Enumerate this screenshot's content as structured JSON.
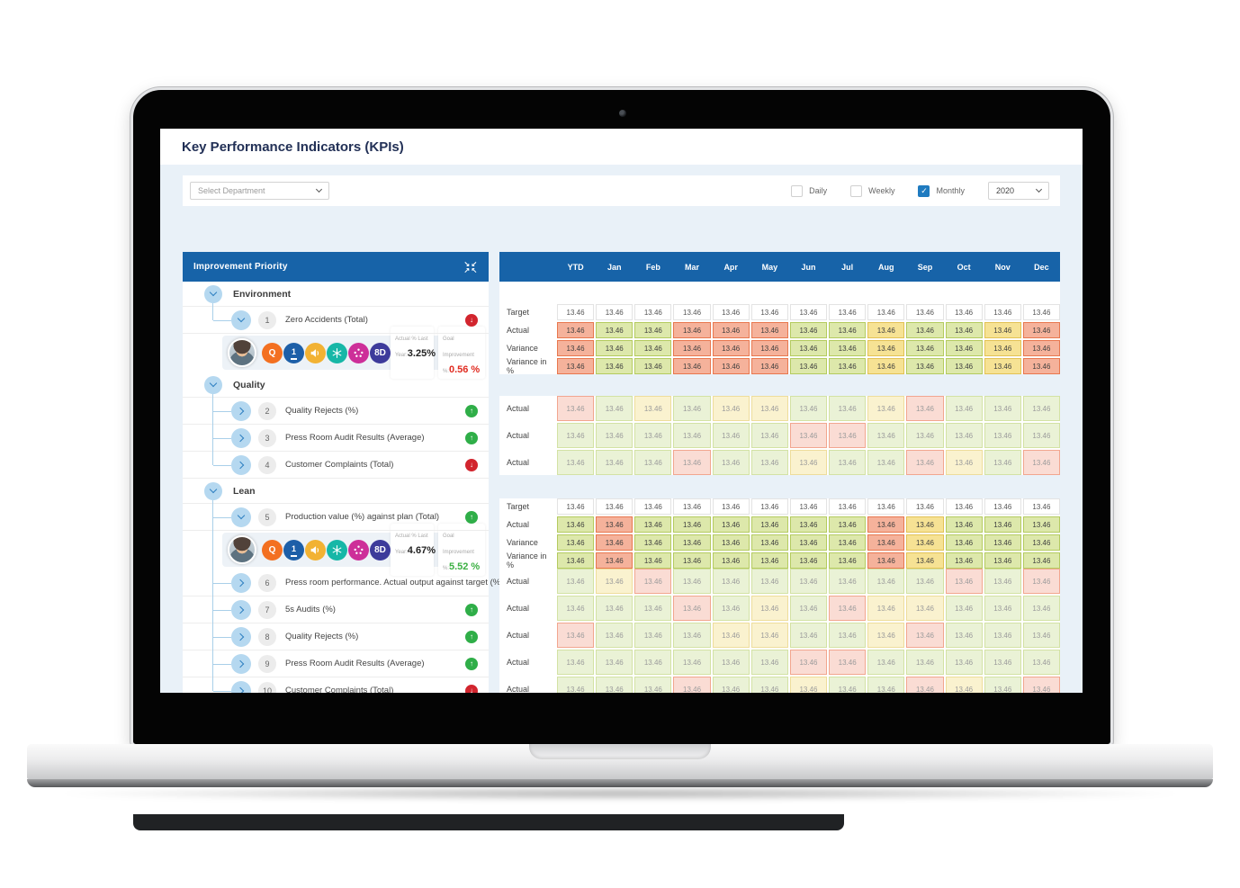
{
  "page": {
    "title": "Key Performance Indicators (KPIs)"
  },
  "colors": {
    "header_blue": "#1763a8",
    "accent_blue": "#1f7bc0",
    "body_background": "#e9f1f8",
    "cell_red": "#f5b29b",
    "cell_green": "#dde8ab",
    "cell_yellow": "#f6e294",
    "cell_pale_pink": "#fadcd4",
    "cell_pale_green": "#eaf2d6",
    "cell_pale_yellow": "#faf2cf",
    "trend_up_green": "#2fae48",
    "trend_down_red": "#d2252e",
    "negative_value_red": "#e02b20",
    "positive_value_green": "#3cb043"
  },
  "filters": {
    "department_placeholder": "Select Department",
    "options": [
      {
        "label": "Daily",
        "checked": false
      },
      {
        "label": "Weekly",
        "checked": false
      },
      {
        "label": "Monthly",
        "checked": true
      }
    ],
    "year": "2020"
  },
  "improvement": {
    "header": "Improvement Priority",
    "sections": [
      {
        "label": "Environment",
        "items": [
          {
            "num": "1",
            "label": "Zero Accidents (Total)",
            "trend": "down",
            "expanded": true,
            "detail": {
              "badges": [
                {
                  "name": "quality-badge-icon",
                  "style": "text",
                  "text": "Q",
                  "bg": "#f37021"
                },
                {
                  "name": "priority-one-badge-icon",
                  "style": "text-underline",
                  "text": "1",
                  "bg": "#1d5fa8"
                },
                {
                  "name": "megaphone-badge-icon",
                  "style": "megaphone",
                  "bg": "#f2b233"
                },
                {
                  "name": "snowflake-badge-icon",
                  "style": "snowflake",
                  "bg": "#16b7a7"
                },
                {
                  "name": "scatter-badge-icon",
                  "style": "dots",
                  "bg": "#cd2f99"
                },
                {
                  "name": "eight-d-badge-icon",
                  "style": "text",
                  "text": "8D",
                  "bg": "#3d3b9b"
                }
              ],
              "actual_label": "Actual % Last Year:",
              "actual_value": "3.25%",
              "goal_label": "Goal Improvement %:",
              "goal_value": "0.56 %",
              "goal_direction": "negative"
            }
          }
        ]
      },
      {
        "label": "Quality",
        "items": [
          {
            "num": "2",
            "label": "Quality Rejects (%)",
            "trend": "up",
            "expanded": false
          },
          {
            "num": "3",
            "label": "Press Room Audit Results (Average)",
            "trend": "up",
            "expanded": false
          },
          {
            "num": "4",
            "label": "Customer Complaints (Total)",
            "trend": "down",
            "expanded": false
          }
        ]
      },
      {
        "label": "Lean",
        "items": [
          {
            "num": "5",
            "label": "Production value (%) against plan (Total)",
            "trend": "up",
            "expanded": true,
            "detail": {
              "badges": [
                {
                  "name": "quality-badge-icon",
                  "style": "text",
                  "text": "Q",
                  "bg": "#f37021"
                },
                {
                  "name": "priority-one-badge-icon",
                  "style": "text-underline",
                  "text": "1",
                  "bg": "#1d5fa8"
                },
                {
                  "name": "megaphone-badge-icon",
                  "style": "megaphone",
                  "bg": "#f2b233"
                },
                {
                  "name": "snowflake-badge-icon",
                  "style": "snowflake",
                  "bg": "#16b7a7"
                },
                {
                  "name": "scatter-badge-icon",
                  "style": "dots",
                  "bg": "#cd2f99"
                },
                {
                  "name": "eight-d-badge-icon",
                  "style": "text",
                  "text": "8D",
                  "bg": "#3d3b9b"
                }
              ],
              "actual_label": "Actual % Last Year:",
              "actual_value": "4.67%",
              "goal_label": "Goal Improvement %:",
              "goal_value": "5.52 %",
              "goal_direction": "positive"
            }
          },
          {
            "num": "6",
            "label": "Press room performance. Actual output against target (%) (%)",
            "trend": "down",
            "expanded": false
          },
          {
            "num": "7",
            "label": "5s Audits (%)",
            "trend": "up",
            "expanded": false
          },
          {
            "num": "8",
            "label": "Quality Rejects (%)",
            "trend": "up",
            "expanded": false
          },
          {
            "num": "9",
            "label": "Press Room Audit Results (Average)",
            "trend": "up",
            "expanded": false
          },
          {
            "num": "10",
            "label": "Customer Complaints (Total)",
            "trend": "down",
            "expanded": false
          }
        ]
      }
    ]
  },
  "table": {
    "columns": [
      "YTD",
      "Jan",
      "Feb",
      "Mar",
      "Apr",
      "May",
      "Jun",
      "Jul",
      "Aug",
      "Sep",
      "Oct",
      "Nov",
      "Dec"
    ],
    "blocks": [
      {
        "type": "summary",
        "rows": [
          {
            "label": "Target",
            "style": "target",
            "values": [
              "13.46",
              "13.46",
              "13.46",
              "13.46",
              "13.46",
              "13.46",
              "13.46",
              "13.46",
              "13.46",
              "13.46",
              "13.46",
              "13.46",
              "13.46"
            ],
            "colors": [
              "white",
              "white",
              "white",
              "white",
              "white",
              "white",
              "white",
              "white",
              "white",
              "white",
              "white",
              "white",
              "white"
            ]
          },
          {
            "label": "Actual",
            "style": "strong",
            "values": [
              "13.46",
              "13.46",
              "13.46",
              "13.46",
              "13.46",
              "13.46",
              "13.46",
              "13.46",
              "13.46",
              "13.46",
              "13.46",
              "13.46",
              "13.46"
            ],
            "colors": [
              "red",
              "green",
              "green",
              "red",
              "red",
              "red",
              "green",
              "green",
              "yellow",
              "green",
              "green",
              "yellow",
              "red"
            ]
          },
          {
            "label": "Variance",
            "style": "strong",
            "values": [
              "13.46",
              "13.46",
              "13.46",
              "13.46",
              "13.46",
              "13.46",
              "13.46",
              "13.46",
              "13.46",
              "13.46",
              "13.46",
              "13.46",
              "13.46"
            ],
            "colors": [
              "red",
              "green",
              "green",
              "red",
              "red",
              "red",
              "green",
              "green",
              "yellow",
              "green",
              "green",
              "yellow",
              "red"
            ]
          },
          {
            "label": "Variance in %",
            "style": "strong",
            "values": [
              "13.46",
              "13.46",
              "13.46",
              "13.46",
              "13.46",
              "13.46",
              "13.46",
              "13.46",
              "13.46",
              "13.46",
              "13.46",
              "13.46",
              "13.46"
            ],
            "colors": [
              "red",
              "green",
              "green",
              "red",
              "red",
              "red",
              "green",
              "green",
              "yellow",
              "green",
              "green",
              "yellow",
              "red"
            ]
          }
        ]
      },
      {
        "type": "collapsed",
        "rows": [
          {
            "label": "Actual",
            "style": "pastel",
            "values": [
              "13.46",
              "13.46",
              "13.46",
              "13.46",
              "13.46",
              "13.46",
              "13.46",
              "13.46",
              "13.46",
              "13.46",
              "13.46",
              "13.46",
              "13.46"
            ],
            "colors": [
              "pink",
              "pgreen",
              "pyellow",
              "pgreen",
              "pyellow",
              "pyellow",
              "pgreen",
              "pgreen",
              "pyellow",
              "pink",
              "pgreen",
              "pgreen",
              "pgreen"
            ]
          },
          {
            "label": "Actual",
            "style": "pastel",
            "values": [
              "13.46",
              "13.46",
              "13.46",
              "13.46",
              "13.46",
              "13.46",
              "13.46",
              "13.46",
              "13.46",
              "13.46",
              "13.46",
              "13.46",
              "13.46"
            ],
            "colors": [
              "pgreen",
              "pgreen",
              "pgreen",
              "pgreen",
              "pgreen",
              "pgreen",
              "pink",
              "pink",
              "pgreen",
              "pgreen",
              "pgreen",
              "pgreen",
              "pgreen"
            ]
          },
          {
            "label": "Actual",
            "style": "pastel",
            "values": [
              "13.46",
              "13.46",
              "13.46",
              "13.46",
              "13.46",
              "13.46",
              "13.46",
              "13.46",
              "13.46",
              "13.46",
              "13.46",
              "13.46",
              "13.46"
            ],
            "colors": [
              "pgreen",
              "pgreen",
              "pgreen",
              "pink",
              "pgreen",
              "pgreen",
              "pyellow",
              "pgreen",
              "pgreen",
              "pink",
              "pyellow",
              "pgreen",
              "pink"
            ]
          }
        ]
      },
      {
        "type": "summary",
        "rows": [
          {
            "label": "Target",
            "style": "target",
            "values": [
              "13.46",
              "13.46",
              "13.46",
              "13.46",
              "13.46",
              "13.46",
              "13.46",
              "13.46",
              "13.46",
              "13.46",
              "13.46",
              "13.46",
              "13.46"
            ],
            "colors": [
              "white",
              "white",
              "white",
              "white",
              "white",
              "white",
              "white",
              "white",
              "white",
              "white",
              "white",
              "white",
              "white"
            ]
          },
          {
            "label": "Actual",
            "style": "strong",
            "values": [
              "13.46",
              "13.46",
              "13.46",
              "13.46",
              "13.46",
              "13.46",
              "13.46",
              "13.46",
              "13.46",
              "13.46",
              "13.46",
              "13.46",
              "13.46"
            ],
            "colors": [
              "green",
              "red",
              "green",
              "green",
              "green",
              "green",
              "green",
              "green",
              "red",
              "yellow",
              "green",
              "green",
              "green"
            ]
          },
          {
            "label": "Variance",
            "style": "strong",
            "values": [
              "13.46",
              "13.46",
              "13.46",
              "13.46",
              "13.46",
              "13.46",
              "13.46",
              "13.46",
              "13.46",
              "13.46",
              "13.46",
              "13.46",
              "13.46"
            ],
            "colors": [
              "green",
              "red",
              "green",
              "green",
              "green",
              "green",
              "green",
              "green",
              "red",
              "yellow",
              "green",
              "green",
              "green"
            ]
          },
          {
            "label": "Variance in %",
            "style": "strong",
            "values": [
              "13.46",
              "13.46",
              "13.46",
              "13.46",
              "13.46",
              "13.46",
              "13.46",
              "13.46",
              "13.46",
              "13.46",
              "13.46",
              "13.46",
              "13.46"
            ],
            "colors": [
              "green",
              "red",
              "green",
              "green",
              "green",
              "green",
              "green",
              "green",
              "red",
              "yellow",
              "green",
              "green",
              "green"
            ]
          }
        ]
      },
      {
        "type": "collapsed",
        "rows": [
          {
            "label": "Actual",
            "style": "pastel",
            "values": [
              "13.46",
              "13.46",
              "13.46",
              "13.46",
              "13.46",
              "13.46",
              "13.46",
              "13.46",
              "13.46",
              "13.46",
              "13.46",
              "13.46",
              "13.46"
            ],
            "colors": [
              "pgreen",
              "pyellow",
              "pink",
              "pgreen",
              "pgreen",
              "pgreen",
              "pgreen",
              "pgreen",
              "pgreen",
              "pgreen",
              "pink",
              "pgreen",
              "pink"
            ]
          },
          {
            "label": "Actual",
            "style": "pastel",
            "values": [
              "13.46",
              "13.46",
              "13.46",
              "13.46",
              "13.46",
              "13.46",
              "13.46",
              "13.46",
              "13.46",
              "13.46",
              "13.46",
              "13.46",
              "13.46"
            ],
            "colors": [
              "pgreen",
              "pgreen",
              "pgreen",
              "pink",
              "pgreen",
              "pyellow",
              "pgreen",
              "pink",
              "pyellow",
              "pyellow",
              "pgreen",
              "pgreen",
              "pgreen"
            ]
          },
          {
            "label": "Actual",
            "style": "pastel",
            "values": [
              "13.46",
              "13.46",
              "13.46",
              "13.46",
              "13.46",
              "13.46",
              "13.46",
              "13.46",
              "13.46",
              "13.46",
              "13.46",
              "13.46",
              "13.46"
            ],
            "colors": [
              "pink",
              "pgreen",
              "pgreen",
              "pgreen",
              "pyellow",
              "pyellow",
              "pgreen",
              "pgreen",
              "pyellow",
              "pink",
              "pgreen",
              "pgreen",
              "pgreen"
            ]
          },
          {
            "label": "Actual",
            "style": "pastel",
            "values": [
              "13.46",
              "13.46",
              "13.46",
              "13.46",
              "13.46",
              "13.46",
              "13.46",
              "13.46",
              "13.46",
              "13.46",
              "13.46",
              "13.46",
              "13.46"
            ],
            "colors": [
              "pgreen",
              "pgreen",
              "pgreen",
              "pgreen",
              "pgreen",
              "pgreen",
              "pink",
              "pink",
              "pgreen",
              "pgreen",
              "pgreen",
              "pgreen",
              "pgreen"
            ]
          },
          {
            "label": "Actual",
            "style": "pastel",
            "values": [
              "13.46",
              "13.46",
              "13.46",
              "13.46",
              "13.46",
              "13.46",
              "13.46",
              "13.46",
              "13.46",
              "13.46",
              "13.46",
              "13.46",
              "13.46"
            ],
            "colors": [
              "pgreen",
              "pgreen",
              "pgreen",
              "pink",
              "pgreen",
              "pgreen",
              "pyellow",
              "pgreen",
              "pgreen",
              "pink",
              "pyellow",
              "pgreen",
              "pink"
            ]
          }
        ]
      }
    ]
  }
}
